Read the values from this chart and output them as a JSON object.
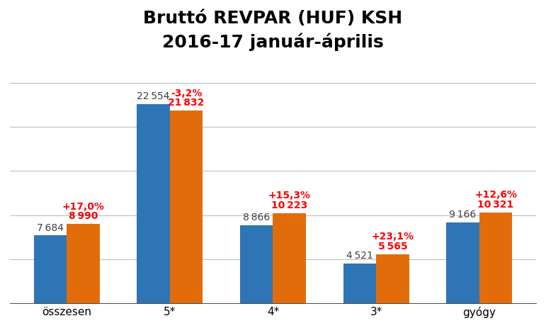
{
  "title_line1": "Bruttó REVPAR (HUF) KSH",
  "title_line2": "2016-17 január-április",
  "categories": [
    "összesen",
    "5*",
    "4*",
    "3*",
    "gyógy"
  ],
  "values_2016": [
    7684,
    22554,
    8866,
    4521,
    9166
  ],
  "values_2017": [
    8990,
    21832,
    10223,
    5565,
    10321
  ],
  "pct_changes": [
    "+17,0%",
    "-3,2%",
    "+15,3%",
    "+23,1%",
    "+12,6%"
  ],
  "color_2016": "#2E75B6",
  "color_2017": "#E36C0A",
  "bar_width": 0.32,
  "ylim": [
    0,
    27000
  ],
  "yticks": [
    0,
    5000,
    10000,
    15000,
    20000,
    25000
  ],
  "label_color_2016": "#404040",
  "label_color_2017": "#FF0000",
  "pct_color": "#FF0000",
  "background_color": "#FFFFFF",
  "title_fontsize": 18,
  "label_fontsize": 10,
  "pct_fontsize": 10,
  "tick_fontsize": 11,
  "grid_color": "#C0C0C0"
}
